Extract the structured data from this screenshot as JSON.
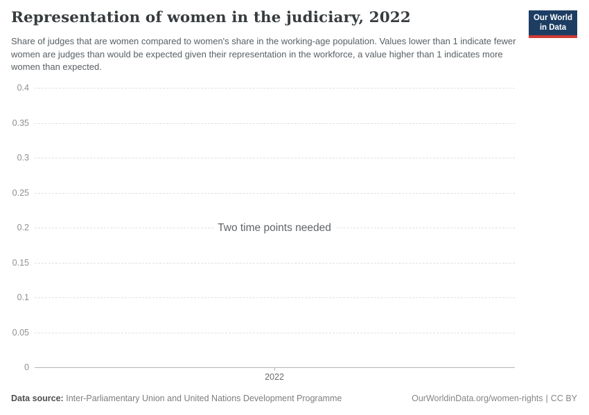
{
  "header": {
    "title": "Representation of women in the judiciary, 2022",
    "subtitle": "Share of judges that are women compared to women's share in the working-age population. Values lower than 1 indicate fewer women are judges than would be expected given their representation in the workforce, a value higher than 1 indicates more women than expected.",
    "logo": {
      "line1": "Our World",
      "line2": "in Data",
      "bg_color": "#1d3d63",
      "accent_color": "#cf3b35"
    }
  },
  "chart_data": {
    "type": "line",
    "title": "Representation of women in the judiciary, 2022",
    "series": [],
    "empty_message": "Two time points needed",
    "x_ticks": [
      "2022"
    ],
    "y_ticks": [
      0,
      0.05,
      0.1,
      0.15,
      0.2,
      0.25,
      0.3,
      0.35,
      0.4
    ],
    "y_tick_labels": [
      "0",
      "0.05",
      "0.1",
      "0.15",
      "0.2",
      "0.25",
      "0.3",
      "0.35",
      "0.4"
    ],
    "ylim": [
      0,
      0.4
    ],
    "grid": true,
    "gridline_color": "#e0e0e0",
    "axis_color": "#b3b3b3"
  },
  "footer": {
    "data_source_label": "Data source:",
    "data_source_value": "Inter-Parliamentary Union and United Nations Development Programme",
    "link": "OurWorldinData.org/women-rights",
    "separator": "|",
    "license": "CC BY"
  }
}
